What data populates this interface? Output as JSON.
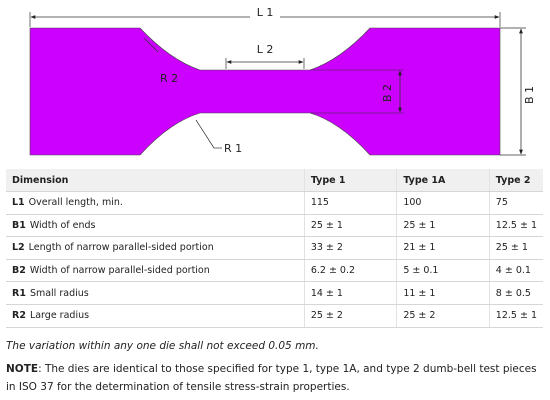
{
  "diagram": {
    "fill_color": "#cc00ff",
    "labels": {
      "L1": "L 1",
      "L2": "L 2",
      "B1": "B 1",
      "B2": "B 2",
      "R1": "R 1",
      "R2": "R 2"
    }
  },
  "table": {
    "headers": [
      "Dimension",
      "Type 1",
      "Type 1A",
      "Type 2"
    ],
    "rows": [
      {
        "code": "L1",
        "desc": "Overall length, min.",
        "t1": "115",
        "t1a": "100",
        "t2": "75"
      },
      {
        "code": "B1",
        "desc": "Width of ends",
        "t1": "25 ± 1",
        "t1a": "25 ± 1",
        "t2": "12.5 ± 1"
      },
      {
        "code": "L2",
        "desc": "Length of narrow parallel-sided portion",
        "t1": "33 ± 2",
        "t1a": "21 ± 1",
        "t2": "25 ± 1"
      },
      {
        "code": "B2",
        "desc": "Width of narrow parallel-sided portion",
        "t1": "6.2 ± 0.2",
        "t1a": "5 ± 0.1",
        "t2": "4 ± 0.1"
      },
      {
        "code": "R1",
        "desc": "Small radius",
        "t1": "14 ± 1",
        "t1a": "11 ± 1",
        "t2": "8 ± 0.5"
      },
      {
        "code": "R2",
        "desc": "Large radius",
        "t1": "25 ± 2",
        "t1a": "25 ± 2",
        "t2": "12.5 ± 1"
      }
    ]
  },
  "variation_note": "The variation within any one die shall not exceed 0.05 mm.",
  "note": {
    "label": "NOTE",
    "text": ": The dies are identical to those specified for type 1, type 1A, and type 2 dumb-bell test pieces in ISO 37 for the determination of tensile stress-strain properties."
  }
}
